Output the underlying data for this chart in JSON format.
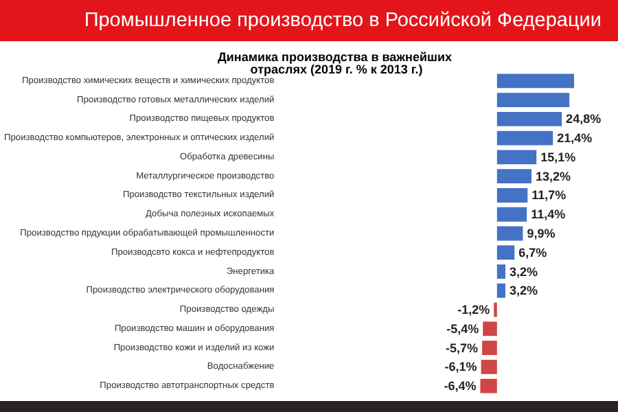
{
  "chart_data": {
    "type": "bar",
    "orientation": "horizontal",
    "title": "Промышленное производство в Российской Федерации",
    "subtitle": "Динамика производства в важнейших отраслях (2019 г. % к 2013 г.)",
    "categories": [
      "Производство химических веществ и химических продуктов",
      "Производство готовых металлических изделий",
      "Производство пищевых продуктов",
      "Производство компьютеров, электронных и оптических изделий",
      "Обработка древесины",
      "Металлургическое производство",
      "Производство текстильных изделий",
      "Добыча полезных ископаемых",
      "Производство прдукции обрабатывающей промышленности",
      "Производсвто кокса и нефтепродуктов",
      "Энергетика",
      "Производство электрического оборудования",
      "Производство одежды",
      "Производство машин и оборудования",
      "Производство кожи и изделий из кожи",
      "Водоснабжение",
      "Производство автотранспортных средств"
    ],
    "values": [
      29.5,
      27.7,
      24.8,
      21.4,
      15.1,
      13.2,
      11.7,
      11.4,
      9.9,
      6.7,
      3.2,
      3.2,
      -1.2,
      -5.4,
      -5.7,
      -6.1,
      -6.4
    ],
    "value_labels": [
      null,
      null,
      "24,8%",
      "21,4%",
      "15,1%",
      "13,2%",
      "11,7%",
      "11,4%",
      "9,9%",
      "6,7%",
      "3,2%",
      "3,2%",
      "-1,2%",
      "-5,4%",
      "-5,7%",
      "-6,1%",
      "-6,4%"
    ],
    "colors": [
      "#4472c4",
      "#4472c4",
      "#4472c4",
      "#4472c4",
      "#4472c4",
      "#4472c4",
      "#4472c4",
      "#4472c4",
      "#4472c4",
      "#4472c4",
      "#4472c4",
      "#4472c4",
      "#d04545",
      "#d04545",
      "#d04545",
      "#d04545",
      "#d04545"
    ],
    "data_labels": false
  }
}
